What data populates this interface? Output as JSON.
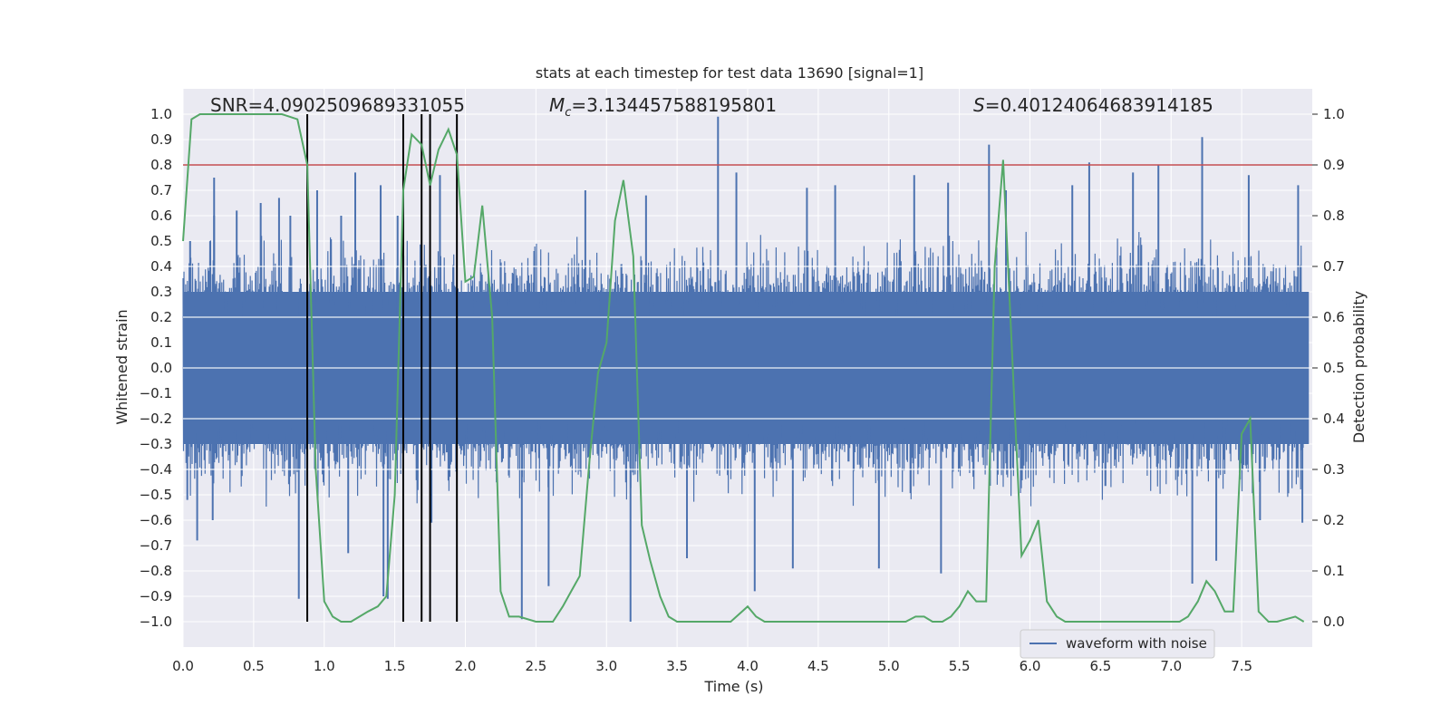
{
  "chart_data": {
    "type": "line",
    "title": "stats at each timestep for test data 13690 [signal=1]",
    "xlabel": "Time (s)",
    "ylabel": "Whitened strain",
    "ylabel_right": "Detection probability",
    "xlim": [
      0.0,
      8.0
    ],
    "ylim": [
      -1.1,
      1.1
    ],
    "ylim_right": [
      -0.05,
      1.05
    ],
    "x_ticks": [
      "0.0",
      "0.5",
      "1.0",
      "1.5",
      "2.0",
      "2.5",
      "3.0",
      "3.5",
      "4.0",
      "4.5",
      "5.0",
      "5.5",
      "6.0",
      "6.5",
      "7.0",
      "7.5"
    ],
    "y_ticks": [
      "-1.0",
      "-0.9",
      "-0.8",
      "-0.7",
      "-0.6",
      "-0.5",
      "-0.4",
      "-0.3",
      "-0.2",
      "-0.1",
      "0.0",
      "0.1",
      "0.2",
      "0.3",
      "0.4",
      "0.5",
      "0.6",
      "0.7",
      "0.8",
      "0.9",
      "1.0"
    ],
    "y_ticks_right": [
      "0.0",
      "0.1",
      "0.2",
      "0.3",
      "0.4",
      "0.5",
      "0.6",
      "0.7",
      "0.8",
      "0.9",
      "1.0"
    ],
    "grid": true,
    "legend_position": "lower-right",
    "annotations": {
      "snr": "SNR=4.0902509689331055",
      "mc": "=3.134457588195801",
      "mc_symbol": "M",
      "mc_subscript": "c",
      "s": "=0.40124064683914185",
      "s_symbol": "S"
    },
    "threshold": {
      "y": 0.9,
      "axis": "right",
      "color": "#c44e52"
    },
    "vertical_lines": [
      0.88,
      1.56,
      1.69,
      1.75,
      1.94
    ],
    "series": [
      {
        "name": "waveform with noise",
        "axis": "left",
        "color": "#4c72b0",
        "style": "dense-noise",
        "envelope_bulk": [
          -0.4,
          0.4
        ],
        "spikes": [
          {
            "x": 0.03,
            "y": -0.52
          },
          {
            "x": 0.05,
            "y": 0.5
          },
          {
            "x": 0.1,
            "y": -0.68
          },
          {
            "x": 0.22,
            "y": 0.6
          },
          {
            "x": 0.21,
            "y": -0.6
          },
          {
            "x": 0.22,
            "y": 0.75
          },
          {
            "x": 0.38,
            "y": 0.62
          },
          {
            "x": 0.55,
            "y": 0.65
          },
          {
            "x": 0.68,
            "y": 0.67
          },
          {
            "x": 0.76,
            "y": 0.6
          },
          {
            "x": 0.82,
            "y": -0.91
          },
          {
            "x": 0.88,
            "y": -0.83
          },
          {
            "x": 0.95,
            "y": 0.7
          },
          {
            "x": 1.12,
            "y": 0.6
          },
          {
            "x": 1.17,
            "y": -0.73
          },
          {
            "x": 1.22,
            "y": 0.77
          },
          {
            "x": 1.4,
            "y": 0.72
          },
          {
            "x": 1.42,
            "y": -0.9
          },
          {
            "x": 1.45,
            "y": -0.91
          },
          {
            "x": 1.52,
            "y": 0.6
          },
          {
            "x": 1.76,
            "y": -0.61
          },
          {
            "x": 1.82,
            "y": 0.76
          },
          {
            "x": 2.4,
            "y": -0.99
          },
          {
            "x": 2.59,
            "y": -0.86
          },
          {
            "x": 2.85,
            "y": 0.7
          },
          {
            "x": 3.17,
            "y": -1.0
          },
          {
            "x": 3.28,
            "y": 0.68
          },
          {
            "x": 3.57,
            "y": -0.75
          },
          {
            "x": 3.79,
            "y": 0.99
          },
          {
            "x": 3.92,
            "y": 0.77
          },
          {
            "x": 4.05,
            "y": -0.88
          },
          {
            "x": 4.32,
            "y": -0.79
          },
          {
            "x": 4.42,
            "y": 0.71
          },
          {
            "x": 4.62,
            "y": 0.72
          },
          {
            "x": 4.93,
            "y": -0.79
          },
          {
            "x": 5.18,
            "y": 0.76
          },
          {
            "x": 5.37,
            "y": -0.81
          },
          {
            "x": 5.42,
            "y": 0.73
          },
          {
            "x": 5.71,
            "y": 0.88
          },
          {
            "x": 5.83,
            "y": 0.7
          },
          {
            "x": 6.3,
            "y": 0.72
          },
          {
            "x": 6.42,
            "y": 0.81
          },
          {
            "x": 6.73,
            "y": 0.77
          },
          {
            "x": 6.91,
            "y": 0.8
          },
          {
            "x": 7.15,
            "y": -0.85
          },
          {
            "x": 7.22,
            "y": 0.91
          },
          {
            "x": 7.32,
            "y": -0.76
          },
          {
            "x": 7.55,
            "y": 0.76
          },
          {
            "x": 7.63,
            "y": -0.6
          },
          {
            "x": 7.9,
            "y": 0.72
          },
          {
            "x": 7.93,
            "y": -0.61
          }
        ]
      },
      {
        "name": "",
        "axis": "right",
        "color": "#55a868",
        "x": [
          0.0,
          0.06,
          0.12,
          0.25,
          0.5,
          0.7,
          0.81,
          0.88,
          0.94,
          1.0,
          1.06,
          1.12,
          1.19,
          1.25,
          1.31,
          1.38,
          1.44,
          1.5,
          1.56,
          1.62,
          1.69,
          1.75,
          1.81,
          1.88,
          1.94,
          2.0,
          2.06,
          2.12,
          2.19,
          2.25,
          2.31,
          2.38,
          2.5,
          2.62,
          2.69,
          2.75,
          2.81,
          2.88,
          2.94,
          3.0,
          3.06,
          3.12,
          3.19,
          3.25,
          3.31,
          3.38,
          3.44,
          3.5,
          3.62,
          3.75,
          3.88,
          4.0,
          4.06,
          4.12,
          4.19,
          4.25,
          4.38,
          4.5,
          4.62,
          4.75,
          4.88,
          5.0,
          5.12,
          5.19,
          5.25,
          5.31,
          5.38,
          5.44,
          5.5,
          5.56,
          5.62,
          5.69,
          5.75,
          5.81,
          5.88,
          5.94,
          6.0,
          6.06,
          6.12,
          6.19,
          6.25,
          6.38,
          6.5,
          6.62,
          6.75,
          6.88,
          7.0,
          7.06,
          7.12,
          7.19,
          7.25,
          7.31,
          7.38,
          7.44,
          7.5,
          7.56,
          7.62,
          7.69,
          7.75,
          7.88,
          7.94
        ],
        "y": [
          0.75,
          0.99,
          1.0,
          1.0,
          1.0,
          1.0,
          0.99,
          0.9,
          0.3,
          0.04,
          0.01,
          0.0,
          0.0,
          0.01,
          0.02,
          0.03,
          0.05,
          0.25,
          0.85,
          0.96,
          0.94,
          0.86,
          0.93,
          0.97,
          0.92,
          0.67,
          0.68,
          0.82,
          0.6,
          0.06,
          0.01,
          0.01,
          0.0,
          0.0,
          0.03,
          0.06,
          0.09,
          0.32,
          0.49,
          0.55,
          0.79,
          0.87,
          0.72,
          0.19,
          0.12,
          0.05,
          0.01,
          0.0,
          0.0,
          0.0,
          0.0,
          0.03,
          0.01,
          0.0,
          0.0,
          0.0,
          0.0,
          0.0,
          0.0,
          0.0,
          0.0,
          0.0,
          0.0,
          0.01,
          0.01,
          0.0,
          0.0,
          0.01,
          0.03,
          0.06,
          0.04,
          0.04,
          0.7,
          0.91,
          0.49,
          0.13,
          0.16,
          0.2,
          0.04,
          0.01,
          0.0,
          0.0,
          0.0,
          0.0,
          0.0,
          0.0,
          0.0,
          0.0,
          0.01,
          0.04,
          0.08,
          0.06,
          0.02,
          0.02,
          0.37,
          0.4,
          0.02,
          0.0,
          0.0,
          0.01,
          0.0
        ]
      }
    ]
  }
}
